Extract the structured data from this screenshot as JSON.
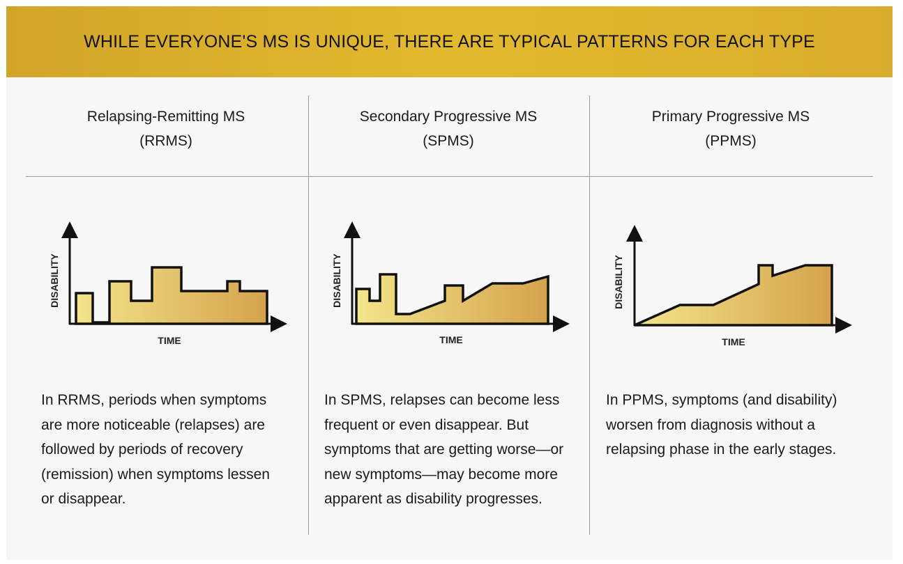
{
  "banner": {
    "title": "WHILE EVERYONE'S MS IS UNIQUE, THERE ARE TYPICAL PATTERNS FOR EACH TYPE"
  },
  "colors": {
    "banner": "#d8ae2c",
    "fill_start": "#f3e58a",
    "fill_end": "#d5a24c",
    "line": "#111111"
  },
  "columns": [
    {
      "title": "Relapsing-Remitting MS",
      "abbr": "(RRMS)",
      "x_axis": "TIME",
      "y_axis": "DISABILITY",
      "description": "In RRMS, periods when symptoms are more noticeable (relapses) are followed by periods of recovery (remission) when symptoms lessen or disappear."
    },
    {
      "title": "Secondary Progressive MS",
      "abbr": "(SPMS)",
      "x_axis": "TIME",
      "y_axis": "DISABILITY",
      "description": "In SPMS, relapses can become less frequent or even disappear. But symptoms that are getting worse—or new symptoms—may become more apparent as disability progresses."
    },
    {
      "title": "Primary Progressive MS",
      "abbr": "(PPMS)",
      "x_axis": "TIME",
      "y_axis": "DISABILITY",
      "description": "In PPMS, symptoms (and disability) worsen from diagnosis without a relapsing phase in the early stages."
    }
  ]
}
